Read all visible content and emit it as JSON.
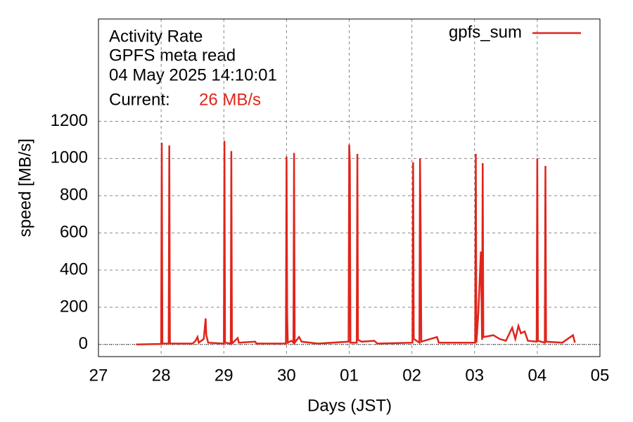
{
  "chart_data": {
    "type": "line",
    "annotations": [
      "Activity Rate",
      "GPFS meta read",
      "04 May 2025 14:10:01"
    ],
    "current_label": "Current:",
    "current_value": "26 MB/s",
    "xlabel": "Days (JST)",
    "ylabel": "speed [MB/s]",
    "xlim": [
      0,
      8
    ],
    "xticks": [
      {
        "value": 0,
        "label": "27"
      },
      {
        "value": 1,
        "label": "28"
      },
      {
        "value": 2,
        "label": "29"
      },
      {
        "value": 3,
        "label": "30"
      },
      {
        "value": 4,
        "label": "01"
      },
      {
        "value": 5,
        "label": "02"
      },
      {
        "value": 6,
        "label": "03"
      },
      {
        "value": 7,
        "label": "04"
      },
      {
        "value": 8,
        "label": "05"
      }
    ],
    "ylim": [
      -65,
      1750
    ],
    "yticks": [
      0,
      200,
      400,
      600,
      800,
      1000,
      1200
    ],
    "grid": true,
    "legend": "top right",
    "x": [
      0.6,
      1.0,
      1.01,
      1.02,
      1.12,
      1.13,
      1.14,
      1.5,
      1.55,
      1.58,
      1.6,
      1.68,
      1.71,
      1.72,
      1.75,
      2.0,
      2.01,
      2.02,
      2.11,
      2.12,
      2.13,
      2.22,
      2.24,
      2.5,
      2.52,
      2.99,
      3.0,
      3.01,
      3.02,
      3.08,
      3.11,
      3.12,
      3.13,
      3.2,
      3.24,
      3.5,
      3.99,
      4.0,
      4.01,
      4.02,
      4.12,
      4.13,
      4.14,
      4.2,
      4.4,
      4.45,
      5.01,
      5.02,
      5.03,
      5.12,
      5.13,
      5.14,
      5.15,
      5.4,
      5.43,
      5.8,
      6.01,
      6.02,
      6.03,
      6.06,
      6.1,
      6.12,
      6.13,
      6.14,
      6.3,
      6.4,
      6.5,
      6.6,
      6.65,
      6.7,
      6.74,
      6.8,
      6.85,
      6.99,
      7.0,
      7.01,
      7.12,
      7.13,
      7.14,
      7.4,
      7.57,
      7.6
    ],
    "series": [
      {
        "name": "gpfs_sum",
        "color": "#e0251b",
        "values": [
          0,
          3,
          1085,
          5,
          5,
          1070,
          5,
          5,
          20,
          40,
          10,
          30,
          140,
          50,
          10,
          5,
          1095,
          10,
          5,
          1040,
          5,
          35,
          10,
          15,
          5,
          5,
          1010,
          160,
          10,
          20,
          10,
          1030,
          10,
          40,
          15,
          5,
          15,
          1075,
          980,
          10,
          10,
          1025,
          25,
          15,
          20,
          5,
          10,
          980,
          30,
          10,
          1000,
          610,
          15,
          40,
          10,
          10,
          10,
          1025,
          10,
          170,
          500,
          25,
          975,
          40,
          50,
          30,
          20,
          90,
          30,
          100,
          60,
          70,
          20,
          15,
          1000,
          20,
          10,
          960,
          15,
          10,
          50,
          10
        ]
      }
    ]
  }
}
